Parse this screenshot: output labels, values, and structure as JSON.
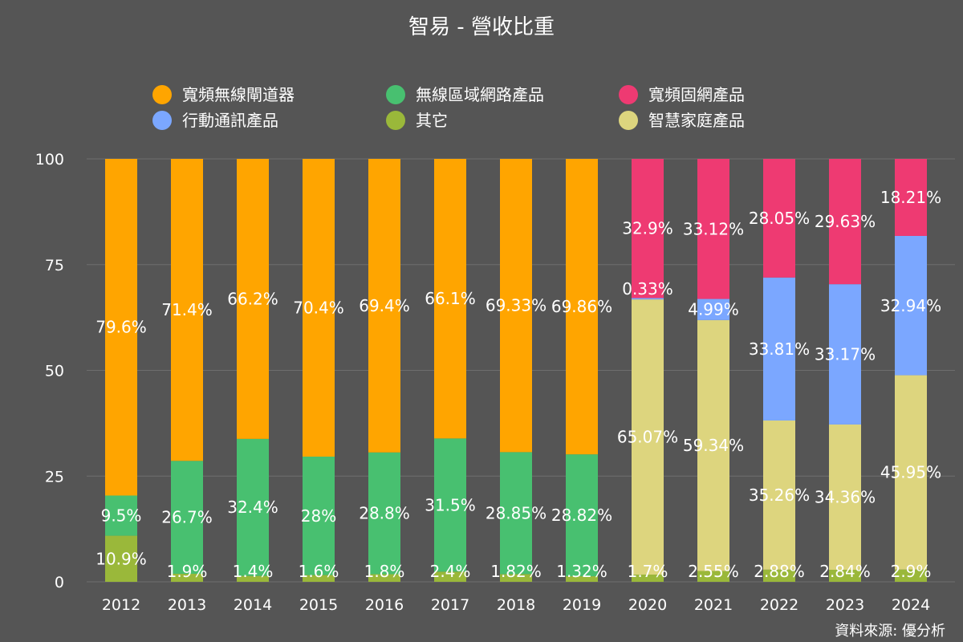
{
  "chart_data": {
    "type": "bar",
    "stacked": true,
    "title": "智易 - 營收比重",
    "source": "資料來源: 優分析",
    "ylim": [
      0,
      100
    ],
    "yticks": [
      0,
      25,
      50,
      75,
      100
    ],
    "legend_position": "top",
    "categories": [
      "2012",
      "2013",
      "2014",
      "2015",
      "2016",
      "2017",
      "2018",
      "2019",
      "2020",
      "2021",
      "2022",
      "2023",
      "2024"
    ],
    "series": [
      {
        "name": "其它",
        "color": "#9AB83A",
        "values": [
          10.9,
          1.9,
          1.4,
          1.6,
          1.8,
          2.4,
          1.82,
          1.32,
          1.7,
          2.55,
          2.88,
          2.84,
          2.9
        ],
        "labels": [
          "10.9%",
          "1.9%",
          "1.4%",
          "1.6%",
          "1.8%",
          "2.4%",
          "1.82%",
          "1.32%",
          "1.7%",
          "2.55%",
          "2.88%",
          "2.84%",
          "2.9%"
        ]
      },
      {
        "name": "智慧家庭產品",
        "color": "#DDD57E",
        "values": [
          0,
          0,
          0,
          0,
          0,
          0,
          0,
          0,
          65.07,
          59.34,
          35.26,
          34.36,
          45.95
        ],
        "labels": [
          "",
          "",
          "",
          "",
          "",
          "",
          "",
          "",
          "65.07%",
          "59.34%",
          "35.26%",
          "34.36%",
          "45.95%"
        ]
      },
      {
        "name": "行動通訊產品",
        "color": "#7BA7FF",
        "values": [
          0,
          0,
          0,
          0,
          0,
          0,
          0,
          0,
          0.33,
          4.99,
          33.81,
          33.17,
          32.94
        ],
        "labels": [
          "",
          "",
          "",
          "",
          "",
          "",
          "",
          "",
          "0.33%",
          "4.99%",
          "33.81%",
          "33.17%",
          "32.94%"
        ]
      },
      {
        "name": "無線區域網路產品",
        "color": "#48C070",
        "values": [
          9.5,
          26.7,
          32.4,
          28,
          28.8,
          31.5,
          28.85,
          28.82,
          0,
          0,
          0,
          0,
          0
        ],
        "labels": [
          "9.5%",
          "26.7%",
          "32.4%",
          "28%",
          "28.8%",
          "31.5%",
          "28.85%",
          "28.82%",
          "",
          "",
          "",
          "",
          ""
        ]
      },
      {
        "name": "寬頻固網產品",
        "color": "#EE3A72",
        "values": [
          0,
          0,
          0,
          0,
          0,
          0,
          0,
          0,
          32.9,
          33.12,
          28.05,
          29.63,
          18.21
        ],
        "labels": [
          "",
          "",
          "",
          "",
          "",
          "",
          "",
          "",
          "32.9%",
          "33.12%",
          "28.05%",
          "29.63%",
          "18.21%"
        ]
      },
      {
        "name": "寬頻無線閘道器",
        "color": "#FFA500",
        "values": [
          79.6,
          71.4,
          66.2,
          70.4,
          69.4,
          66.1,
          69.33,
          69.86,
          0,
          0,
          0,
          0,
          0
        ],
        "labels": [
          "79.6%",
          "71.4%",
          "66.2%",
          "70.4%",
          "69.4%",
          "66.1%",
          "69.33%",
          "69.86%",
          "",
          "",
          "",
          "",
          ""
        ]
      }
    ],
    "legend": [
      {
        "name": "寬頻無線閘道器",
        "color": "#FFA500"
      },
      {
        "name": "無線區域網路產品",
        "color": "#48C070"
      },
      {
        "name": "寬頻固網產品",
        "color": "#EE3A72"
      },
      {
        "name": "行動通訊產品",
        "color": "#7BA7FF"
      },
      {
        "name": "其它",
        "color": "#9AB83A"
      },
      {
        "name": "智慧家庭產品",
        "color": "#DDD57E"
      }
    ]
  }
}
